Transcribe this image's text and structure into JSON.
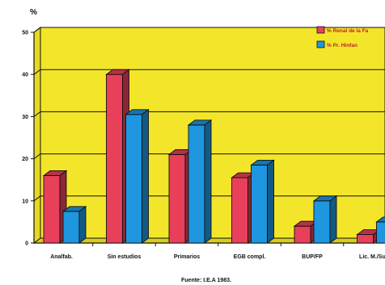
{
  "chart_data": {
    "type": "bar",
    "title": "",
    "ylabel": "%",
    "xlabel": "",
    "categories": [
      "Analfab.",
      "Sin estudios",
      "Primarios",
      "EGB compl.",
      "BUP/FP",
      "Lic. M./Sup."
    ],
    "series": [
      {
        "name": "% Renal de la Fa",
        "color": "#e8405a",
        "values": [
          16,
          40,
          21,
          15.5,
          4,
          2
        ]
      },
      {
        "name": "% Pr. Hinfan",
        "color": "#1e96e0",
        "values": [
          7.5,
          30.5,
          28,
          18.5,
          10,
          5
        ]
      }
    ],
    "ylim": [
      0,
      50
    ],
    "yticks": [
      0,
      10,
      20,
      30,
      40,
      50
    ],
    "grid": true,
    "legend_position": "top-right",
    "plot_background": "#f3e62a",
    "source": "Fuente: I.E.A 1983."
  }
}
